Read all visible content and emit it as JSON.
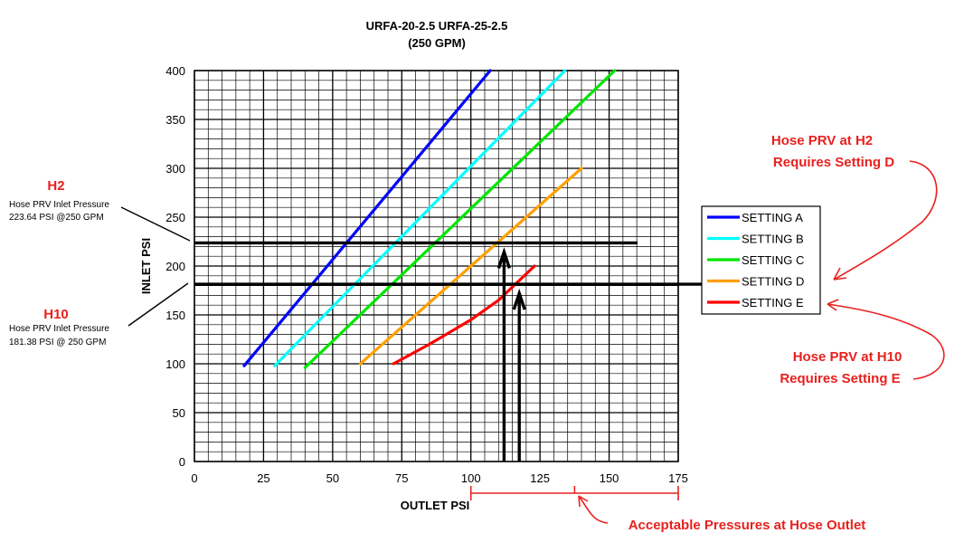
{
  "chart_data": {
    "type": "line",
    "title": "URFA-20-2.5 URFA-25-2.5",
    "subtitle": "(250 GPM)",
    "xlabel": "OUTLET PSI",
    "ylabel": "INLET PSI",
    "xlim": [
      0,
      175
    ],
    "ylim": [
      0,
      400
    ],
    "xticks": [
      "0",
      "25",
      "50",
      "75",
      "100",
      "125",
      "150",
      "175"
    ],
    "yticks": [
      "0",
      "50",
      "100",
      "150",
      "200",
      "250",
      "300",
      "350",
      "400"
    ],
    "grid": true,
    "legend_position": "right",
    "series": [
      {
        "name": "SETTING A",
        "color": "#0000ff",
        "points": [
          [
            18,
            98
          ],
          [
            107,
            400
          ]
        ]
      },
      {
        "name": "SETTING B",
        "color": "#00ffff",
        "points": [
          [
            29,
            98
          ],
          [
            134,
            400
          ]
        ]
      },
      {
        "name": "SETTING C",
        "color": "#00e600",
        "points": [
          [
            40,
            96
          ],
          [
            152,
            400
          ]
        ]
      },
      {
        "name": "SETTING D",
        "color": "#ffa000",
        "points": [
          [
            60,
            100
          ],
          [
            80,
            150
          ],
          [
            100,
            200
          ],
          [
            120,
            250
          ],
          [
            140,
            300
          ]
        ]
      },
      {
        "name": "SETTING E",
        "color": "#ff0000",
        "points": [
          [
            72,
            100
          ],
          [
            85,
            120
          ],
          [
            100,
            145
          ],
          [
            110,
            165
          ],
          [
            123,
            200
          ]
        ]
      }
    ],
    "reference_lines": [
      {
        "label": "H2",
        "inlet_psi": 223.64
      },
      {
        "label": "H10",
        "inlet_psi": 181.38
      }
    ],
    "outlet_arrows": [
      {
        "label": "H2",
        "outlet_psi": 112,
        "to_inlet_psi": 223.64
      },
      {
        "label": "H10",
        "outlet_psi": 117.5,
        "to_inlet_psi": 181.38
      }
    ],
    "acceptable_range": [
      100,
      175
    ]
  },
  "annotations": {
    "h2_title": "H2",
    "h2_line1": "Hose PRV Inlet Pressure",
    "h2_line2": "223.64 PSI @250 GPM",
    "h10_title": "H10",
    "h10_line1": "Hose PRV Inlet Pressure",
    "h10_line2": "181.38 PSI @ 250 GPM",
    "callout_h2_line1": "Hose PRV at H2",
    "callout_h2_line2": "Requires Setting D",
    "callout_h10_line1": "Hose PRV at H10",
    "callout_h10_line2": "Requires Setting E",
    "acceptable_label": "Acceptable Pressures at Hose Outlet"
  },
  "colors": {
    "annotation_red": "#e8211e",
    "grid": "#000000",
    "ref_line": "#000000"
  }
}
